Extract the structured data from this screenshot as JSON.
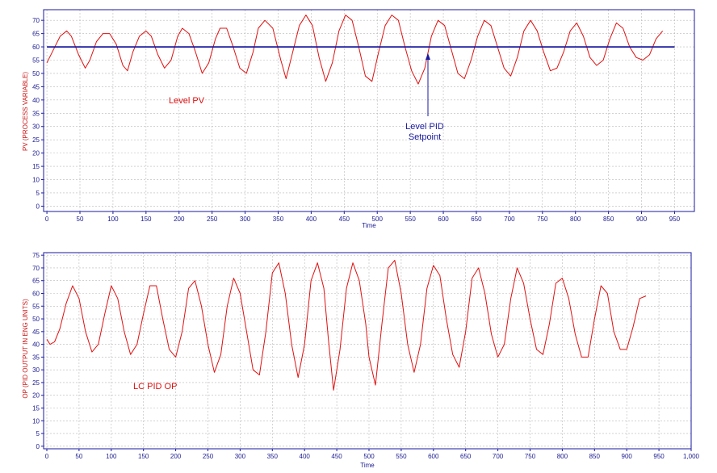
{
  "chart_data": [
    {
      "type": "line",
      "xlabel": "Time",
      "ylabel": "PV (PROCESS VARIABLE)",
      "xlim": [
        -5,
        980
      ],
      "ylim": [
        -2,
        74
      ],
      "xticks": [
        "0",
        "50",
        "100",
        "150",
        "200",
        "250",
        "300",
        "350",
        "400",
        "450",
        "500",
        "550",
        "600",
        "650",
        "700",
        "750",
        "800",
        "850",
        "900",
        "950"
      ],
      "yticks": [
        "0",
        "5",
        "10",
        "15",
        "20",
        "25",
        "30",
        "35",
        "40",
        "45",
        "50",
        "55",
        "60",
        "65",
        "70"
      ],
      "grid": true,
      "colors": {
        "pv": "#e01010",
        "setpoint": "#1a1aa0",
        "axis": "#1a1aa0"
      },
      "series": [
        {
          "key": "pv",
          "x": [
            0,
            10,
            20,
            30,
            37,
            48,
            58,
            65,
            75,
            85,
            95,
            105,
            115,
            122,
            130,
            140,
            150,
            158,
            168,
            178,
            188,
            198,
            205,
            215,
            225,
            235,
            245,
            255,
            262,
            272,
            282,
            292,
            302,
            312,
            320,
            330,
            342,
            354,
            362,
            372,
            382,
            392,
            402,
            412,
            422,
            432,
            442,
            452,
            462,
            472,
            482,
            492,
            502,
            512,
            522,
            532,
            542,
            552,
            562,
            572,
            582,
            592,
            602,
            612,
            622,
            632,
            642,
            652,
            662,
            672,
            682,
            692,
            702,
            712,
            722,
            732,
            742,
            752,
            762,
            772,
            782,
            792,
            802,
            812,
            822,
            832,
            842,
            852,
            862,
            872,
            882,
            892,
            902,
            912,
            922,
            932
          ],
          "y": [
            54,
            59,
            64,
            66,
            64,
            57,
            52,
            55,
            62,
            65,
            65,
            61,
            53,
            51,
            58,
            64,
            66,
            64,
            57,
            52,
            55,
            64,
            67,
            65,
            58,
            50,
            54,
            63,
            67,
            67,
            60,
            52,
            50,
            58,
            67,
            70,
            67,
            55,
            48,
            58,
            68,
            72,
            68,
            56,
            47,
            54,
            66,
            72,
            70,
            60,
            49,
            47,
            58,
            68,
            72,
            70,
            60,
            51,
            46,
            52,
            64,
            70,
            68,
            59,
            50,
            48,
            55,
            64,
            70,
            68,
            60,
            52,
            49,
            56,
            66,
            70,
            66,
            58,
            51,
            52,
            58,
            66,
            69,
            64,
            56,
            53,
            55,
            63,
            69,
            67,
            60,
            56,
            55,
            57,
            63,
            66
          ]
        },
        {
          "key": "setpoint",
          "x": [
            0,
            950
          ],
          "y": [
            60,
            60
          ]
        }
      ],
      "annotations": [
        "Level PV",
        "Level PID",
        "Setpoint"
      ]
    },
    {
      "type": "line",
      "xlabel": "Time",
      "ylabel": "OP (PID OUTPUT IN ENG UNITS)",
      "xlim": [
        -5,
        1000
      ],
      "ylim": [
        -1,
        76
      ],
      "xticks": [
        "0",
        "50",
        "100",
        "150",
        "200",
        "250",
        "300",
        "350",
        "400",
        "450",
        "500",
        "550",
        "600",
        "650",
        "700",
        "750",
        "800",
        "850",
        "900",
        "950",
        "1,000"
      ],
      "yticks": [
        "0",
        "5",
        "10",
        "15",
        "20",
        "25",
        "30",
        "35",
        "40",
        "45",
        "50",
        "55",
        "60",
        "65",
        "70",
        "75"
      ],
      "grid": true,
      "colors": {
        "op": "#e01010",
        "axis": "#1a1aa0"
      },
      "series": [
        {
          "key": "op",
          "x": [
            0,
            5,
            12,
            20,
            30,
            40,
            50,
            60,
            70,
            80,
            90,
            100,
            110,
            120,
            130,
            140,
            150,
            160,
            170,
            180,
            190,
            200,
            210,
            220,
            230,
            240,
            250,
            260,
            270,
            280,
            290,
            300,
            310,
            320,
            330,
            340,
            350,
            360,
            370,
            380,
            390,
            400,
            410,
            420,
            430,
            437,
            445,
            455,
            465,
            475,
            485,
            495,
            500,
            510,
            520,
            530,
            540,
            550,
            560,
            570,
            580,
            590,
            600,
            610,
            620,
            630,
            640,
            650,
            660,
            670,
            680,
            690,
            700,
            710,
            720,
            730,
            740,
            750,
            760,
            770,
            780,
            790,
            800,
            810,
            820,
            830,
            840,
            850,
            860,
            870,
            880,
            890,
            900,
            910,
            920,
            930
          ],
          "y": [
            42,
            40,
            41,
            46,
            56,
            63,
            58,
            45,
            37,
            40,
            52,
            63,
            58,
            45,
            36,
            40,
            52,
            63,
            63,
            50,
            38,
            35,
            45,
            62,
            65,
            55,
            40,
            29,
            36,
            55,
            66,
            60,
            45,
            30,
            28,
            45,
            68,
            72,
            60,
            40,
            27,
            40,
            65,
            72,
            62,
            42,
            22,
            38,
            62,
            72,
            65,
            48,
            35,
            24,
            48,
            70,
            73,
            60,
            40,
            29,
            40,
            62,
            71,
            67,
            50,
            36,
            31,
            45,
            66,
            70,
            60,
            44,
            35,
            40,
            58,
            70,
            64,
            50,
            38,
            36,
            48,
            64,
            66,
            58,
            44,
            35,
            35,
            50,
            63,
            60,
            45,
            38,
            38,
            47,
            58,
            59
          ]
        }
      ],
      "annotations": [
        "LC PID OP"
      ]
    }
  ]
}
